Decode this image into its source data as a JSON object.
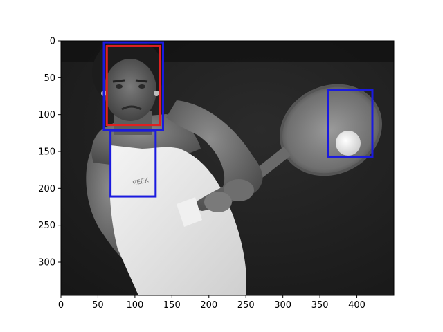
{
  "chart_data": {
    "type": "image",
    "xlim": [
      0,
      450
    ],
    "ylim": [
      345,
      0
    ],
    "x_ticks": [
      0,
      50,
      100,
      150,
      200,
      250,
      300,
      350,
      400
    ],
    "y_ticks": [
      0,
      50,
      100,
      150,
      200,
      250,
      300
    ],
    "x_tick_labels": [
      "0",
      "50",
      "100",
      "150",
      "200",
      "250",
      "300",
      "350",
      "400"
    ],
    "y_tick_labels": [
      "0",
      "50",
      "100",
      "150",
      "200",
      "250",
      "300"
    ],
    "boxes": [
      {
        "name": "red-face-box",
        "color": "#e02020",
        "x0": 62,
        "y0": 7,
        "x1": 134,
        "y1": 114
      },
      {
        "name": "blue-head-box",
        "color": "#1a1adf",
        "x0": 58,
        "y0": 2,
        "x1": 138,
        "y1": 121
      },
      {
        "name": "blue-torso-box",
        "color": "#1a1adf",
        "x0": 67,
        "y0": 122,
        "x1": 128,
        "y1": 211
      },
      {
        "name": "blue-ball-box",
        "color": "#1a1adf",
        "x0": 361,
        "y0": 67,
        "x1": 421,
        "y1": 157
      }
    ]
  }
}
